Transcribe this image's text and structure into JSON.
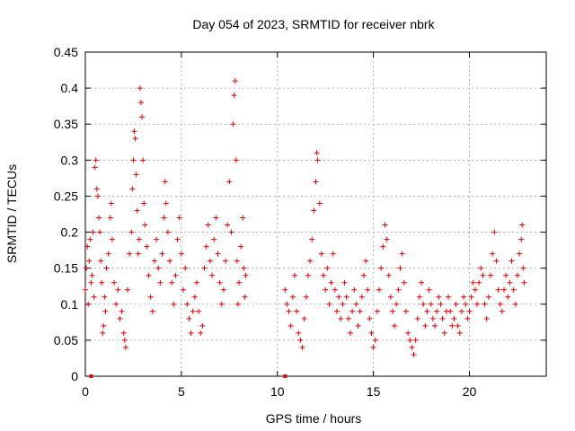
{
  "chart_data": {
    "type": "scatter",
    "title": "Day 054 of 2023, SRMTID for receiver nbrk",
    "xlabel": "GPS time / hours",
    "ylabel": "SRMTID / TECUs",
    "xlim": [
      0,
      24
    ],
    "ylim": [
      0,
      0.45
    ],
    "x_ticks": [
      0,
      5,
      10,
      15,
      20
    ],
    "x_tick_labels": [
      "0",
      "5",
      "10",
      "15",
      "20"
    ],
    "y_ticks": [
      0,
      0.05,
      0.1,
      0.15,
      0.2,
      0.25,
      0.3,
      0.35,
      0.4,
      0.45
    ],
    "y_tick_labels": [
      "0",
      "0.05",
      "0.1",
      "0.15",
      "0.2",
      "0.25",
      "0.3",
      "0.35",
      "0.4",
      "0.45"
    ],
    "grid": true,
    "marker": "+",
    "color": "#e00000",
    "series": [
      {
        "name": "SRMTID",
        "points": [
          [
            0.0,
            0.12
          ],
          [
            0.05,
            0.15
          ],
          [
            0.1,
            0.18
          ],
          [
            0.15,
            0.1
          ],
          [
            0.2,
            0.16
          ],
          [
            0.25,
            0.19
          ],
          [
            0.3,
            0.13
          ],
          [
            0.35,
            0.14
          ],
          [
            0.4,
            0.2
          ],
          [
            0.45,
            0.11
          ],
          [
            0.5,
            0.29
          ],
          [
            0.55,
            0.3
          ],
          [
            0.6,
            0.26
          ],
          [
            0.65,
            0.25
          ],
          [
            0.7,
            0.22
          ],
          [
            0.75,
            0.2
          ],
          [
            0.8,
            0.16
          ],
          [
            0.85,
            0.13
          ],
          [
            0.9,
            0.06
          ],
          [
            0.95,
            0.07
          ],
          [
            1.0,
            0.11
          ],
          [
            1.05,
            0.09
          ],
          [
            1.1,
            0.15
          ],
          [
            1.2,
            0.17
          ],
          [
            1.3,
            0.22
          ],
          [
            1.35,
            0.24
          ],
          [
            1.4,
            0.19
          ],
          [
            1.5,
            0.13
          ],
          [
            1.6,
            0.1
          ],
          [
            1.7,
            0.12
          ],
          [
            1.8,
            0.08
          ],
          [
            1.9,
            0.09
          ],
          [
            2.0,
            0.06
          ],
          [
            2.05,
            0.05
          ],
          [
            2.1,
            0.04
          ],
          [
            2.2,
            0.12
          ],
          [
            2.3,
            0.17
          ],
          [
            2.4,
            0.2
          ],
          [
            2.45,
            0.26
          ],
          [
            2.5,
            0.3
          ],
          [
            2.55,
            0.34
          ],
          [
            2.6,
            0.33
          ],
          [
            2.65,
            0.28
          ],
          [
            2.7,
            0.23
          ],
          [
            2.75,
            0.17
          ],
          [
            2.8,
            0.19
          ],
          [
            2.85,
            0.4
          ],
          [
            2.9,
            0.38
          ],
          [
            2.95,
            0.36
          ],
          [
            3.0,
            0.3
          ],
          [
            3.05,
            0.24
          ],
          [
            3.1,
            0.21
          ],
          [
            3.2,
            0.18
          ],
          [
            3.3,
            0.14
          ],
          [
            3.4,
            0.11
          ],
          [
            3.5,
            0.09
          ],
          [
            3.6,
            0.16
          ],
          [
            3.7,
            0.19
          ],
          [
            3.8,
            0.15
          ],
          [
            3.9,
            0.13
          ],
          [
            4.0,
            0.17
          ],
          [
            4.1,
            0.22
          ],
          [
            4.15,
            0.27
          ],
          [
            4.2,
            0.24
          ],
          [
            4.3,
            0.2
          ],
          [
            4.4,
            0.16
          ],
          [
            4.5,
            0.13
          ],
          [
            4.6,
            0.1
          ],
          [
            4.7,
            0.14
          ],
          [
            4.8,
            0.19
          ],
          [
            4.9,
            0.22
          ],
          [
            5.0,
            0.17
          ],
          [
            5.1,
            0.12
          ],
          [
            5.2,
            0.15
          ],
          [
            5.3,
            0.1
          ],
          [
            5.4,
            0.08
          ],
          [
            5.5,
            0.06
          ],
          [
            5.6,
            0.09
          ],
          [
            5.7,
            0.11
          ],
          [
            5.8,
            0.13
          ],
          [
            5.9,
            0.09
          ],
          [
            6.0,
            0.06
          ],
          [
            6.1,
            0.07
          ],
          [
            6.2,
            0.15
          ],
          [
            6.3,
            0.18
          ],
          [
            6.4,
            0.21
          ],
          [
            6.5,
            0.16
          ],
          [
            6.6,
            0.14
          ],
          [
            6.7,
            0.19
          ],
          [
            6.8,
            0.22
          ],
          [
            6.9,
            0.17
          ],
          [
            7.0,
            0.13
          ],
          [
            7.1,
            0.1
          ],
          [
            7.2,
            0.12
          ],
          [
            7.3,
            0.16
          ],
          [
            7.4,
            0.21
          ],
          [
            7.5,
            0.27
          ],
          [
            7.6,
            0.2
          ],
          [
            7.7,
            0.35
          ],
          [
            7.75,
            0.39
          ],
          [
            7.8,
            0.41
          ],
          [
            7.85,
            0.3
          ],
          [
            7.9,
            0.16
          ],
          [
            7.95,
            0.1
          ],
          [
            8.0,
            0.13
          ],
          [
            8.1,
            0.18
          ],
          [
            8.2,
            0.22
          ],
          [
            8.25,
            0.15
          ],
          [
            8.3,
            0.11
          ],
          [
            8.35,
            0.14
          ],
          [
            10.4,
            0.12
          ],
          [
            10.5,
            0.1
          ],
          [
            10.6,
            0.09
          ],
          [
            10.7,
            0.07
          ],
          [
            10.8,
            0.11
          ],
          [
            10.9,
            0.14
          ],
          [
            11.0,
            0.09
          ],
          [
            11.1,
            0.06
          ],
          [
            11.2,
            0.05
          ],
          [
            11.3,
            0.04
          ],
          [
            11.4,
            0.08
          ],
          [
            11.5,
            0.11
          ],
          [
            11.6,
            0.14
          ],
          [
            11.7,
            0.16
          ],
          [
            11.8,
            0.19
          ],
          [
            11.9,
            0.23
          ],
          [
            12.0,
            0.27
          ],
          [
            12.05,
            0.31
          ],
          [
            12.1,
            0.3
          ],
          [
            12.2,
            0.24
          ],
          [
            12.3,
            0.17
          ],
          [
            12.4,
            0.14
          ],
          [
            12.5,
            0.12
          ],
          [
            12.6,
            0.15
          ],
          [
            12.7,
            0.1
          ],
          [
            12.8,
            0.13
          ],
          [
            12.9,
            0.17
          ],
          [
            13.0,
            0.12
          ],
          [
            13.1,
            0.09
          ],
          [
            13.2,
            0.11
          ],
          [
            13.3,
            0.08
          ],
          [
            13.4,
            0.1
          ],
          [
            13.5,
            0.13
          ],
          [
            13.6,
            0.11
          ],
          [
            13.7,
            0.08
          ],
          [
            13.8,
            0.06
          ],
          [
            13.9,
            0.09
          ],
          [
            14.0,
            0.12
          ],
          [
            14.1,
            0.1
          ],
          [
            14.2,
            0.07
          ],
          [
            14.3,
            0.09
          ],
          [
            14.4,
            0.11
          ],
          [
            14.5,
            0.14
          ],
          [
            14.6,
            0.16
          ],
          [
            14.7,
            0.12
          ],
          [
            14.8,
            0.08
          ],
          [
            14.9,
            0.06
          ],
          [
            15.0,
            0.04
          ],
          [
            15.1,
            0.05
          ],
          [
            15.2,
            0.09
          ],
          [
            15.3,
            0.12
          ],
          [
            15.4,
            0.15
          ],
          [
            15.5,
            0.18
          ],
          [
            15.6,
            0.21
          ],
          [
            15.7,
            0.19
          ],
          [
            15.8,
            0.14
          ],
          [
            15.9,
            0.11
          ],
          [
            16.0,
            0.09
          ],
          [
            16.1,
            0.07
          ],
          [
            16.2,
            0.1
          ],
          [
            16.3,
            0.12
          ],
          [
            16.4,
            0.15
          ],
          [
            16.5,
            0.17
          ],
          [
            16.6,
            0.13
          ],
          [
            16.7,
            0.09
          ],
          [
            16.8,
            0.06
          ],
          [
            16.9,
            0.05
          ],
          [
            17.0,
            0.04
          ],
          [
            17.1,
            0.03
          ],
          [
            17.2,
            0.05
          ],
          [
            17.3,
            0.08
          ],
          [
            17.4,
            0.11
          ],
          [
            17.5,
            0.13
          ],
          [
            17.6,
            0.1
          ],
          [
            17.7,
            0.07
          ],
          [
            17.8,
            0.09
          ],
          [
            17.9,
            0.12
          ],
          [
            18.0,
            0.1
          ],
          [
            18.1,
            0.08
          ],
          [
            18.2,
            0.07
          ],
          [
            18.3,
            0.09
          ],
          [
            18.4,
            0.11
          ],
          [
            18.5,
            0.1
          ],
          [
            18.6,
            0.08
          ],
          [
            18.7,
            0.06
          ],
          [
            18.8,
            0.09
          ],
          [
            18.9,
            0.11
          ],
          [
            19.0,
            0.09
          ],
          [
            19.1,
            0.07
          ],
          [
            19.2,
            0.08
          ],
          [
            19.3,
            0.1
          ],
          [
            19.4,
            0.07
          ],
          [
            19.5,
            0.06
          ],
          [
            19.6,
            0.09
          ],
          [
            19.7,
            0.11
          ],
          [
            19.8,
            0.1
          ],
          [
            19.9,
            0.08
          ],
          [
            20.0,
            0.09
          ],
          [
            20.1,
            0.11
          ],
          [
            20.2,
            0.13
          ],
          [
            20.3,
            0.12
          ],
          [
            20.4,
            0.1
          ],
          [
            20.5,
            0.13
          ],
          [
            20.6,
            0.15
          ],
          [
            20.7,
            0.14
          ],
          [
            20.8,
            0.1
          ],
          [
            20.9,
            0.08
          ],
          [
            21.0,
            0.11
          ],
          [
            21.1,
            0.14
          ],
          [
            21.2,
            0.17
          ],
          [
            21.3,
            0.2
          ],
          [
            21.4,
            0.16
          ],
          [
            21.5,
            0.12
          ],
          [
            21.6,
            0.1
          ],
          [
            21.7,
            0.09
          ],
          [
            21.8,
            0.12
          ],
          [
            21.9,
            0.14
          ],
          [
            22.0,
            0.11
          ],
          [
            22.1,
            0.13
          ],
          [
            22.2,
            0.16
          ],
          [
            22.3,
            0.12
          ],
          [
            22.4,
            0.1
          ],
          [
            22.5,
            0.14
          ],
          [
            22.6,
            0.17
          ],
          [
            22.7,
            0.19
          ],
          [
            22.75,
            0.21
          ],
          [
            22.8,
            0.15
          ],
          [
            22.85,
            0.13
          ]
        ]
      }
    ],
    "baseline_markers": [
      0.3,
      10.4
    ]
  }
}
